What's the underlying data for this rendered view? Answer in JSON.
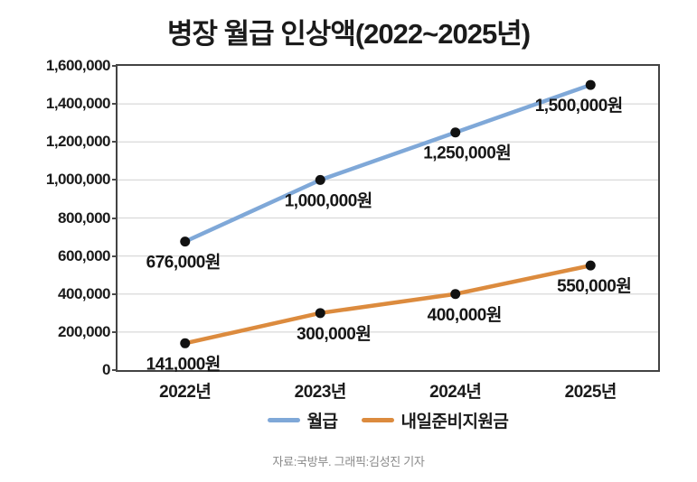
{
  "title": "병장 월급 인상액(2022~2025년)",
  "footer": "자료:국방부. 그래픽:김성진 기자",
  "colors": {
    "salary_line": "#7fa8d8",
    "support_line": "#dc8b3e",
    "marker": "#111111",
    "grid": "#d9d9d9",
    "axis_border": "#434343",
    "label_text": "#161616",
    "footer_text": "#898989"
  },
  "chart_data": {
    "type": "line",
    "title": "병장 월급 인상액(2022~2025년)",
    "categories": [
      "2022년",
      "2023년",
      "2024년",
      "2025년"
    ],
    "series": [
      {
        "name": "월급",
        "color": "#7fa8d8",
        "values": [
          676000,
          1000000,
          1250000,
          1500000
        ],
        "point_labels": [
          "676,000원",
          "1,000,000원",
          "1,250,000원",
          "1,500,000원"
        ]
      },
      {
        "name": "내일준비지원금",
        "color": "#dc8b3e",
        "values": [
          141000,
          300000,
          400000,
          550000
        ],
        "point_labels": [
          "141,000원",
          "300,000원",
          "400,000원",
          "550,000원"
        ]
      }
    ],
    "xlabel": "",
    "ylabel": "",
    "ylim": [
      0,
      1600000
    ],
    "ytick_interval": 200000,
    "ytick_labels": [
      "0",
      "200,000",
      "400,000",
      "600,000",
      "800,000",
      "1,000,000",
      "1,200,000",
      "1,400,000",
      "1,600,000"
    ],
    "grid": true,
    "legend_position": "bottom"
  }
}
